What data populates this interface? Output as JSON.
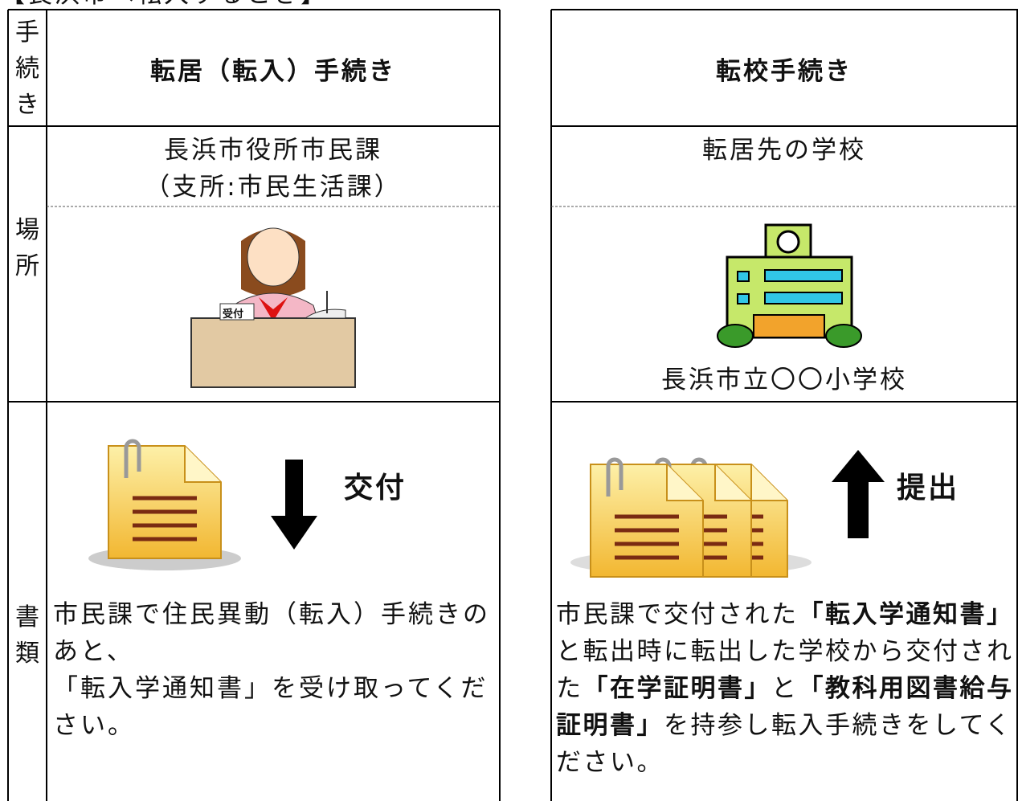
{
  "header": {
    "title": "【長浜市へ転入するとき】"
  },
  "table": {
    "procedure": {
      "label": "手続き",
      "left": "転居（転入）手続き",
      "right": "転校手続き"
    },
    "place": {
      "label": "場所",
      "left": [
        "長浜市役所市民課",
        "（支所:市民生活課）"
      ],
      "left_sign": "受付",
      "right": "転居先の学校",
      "right_school": "長浜市立〇〇小学校"
    },
    "documents": {
      "label": "書類",
      "left_arrow": "交付",
      "right_arrow": "提出",
      "left_text": [
        "市民課で住民異動（転入）手続きのあと、",
        "「転入学通知書」を受け取ってください。"
      ],
      "right_text": [
        {
          "text": "市民課で交付された",
          "bold": false
        },
        {
          "text": "「転入学通知書」",
          "bold": true
        },
        {
          "text": "と転出時に転出した学校から交付された",
          "bold": false
        },
        {
          "text": "「在学証明書」",
          "bold": true
        },
        {
          "text": "と",
          "bold": false
        },
        {
          "text": "「教科用図書給与証明書」",
          "bold": true
        },
        {
          "text": "を持参し転入手続きをしてください。",
          "bold": false
        }
      ]
    }
  }
}
